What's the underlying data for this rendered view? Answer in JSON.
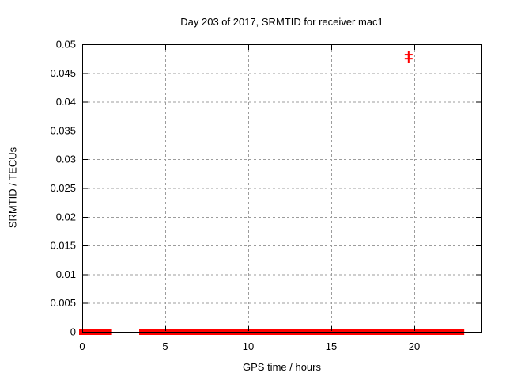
{
  "chart_data": {
    "type": "scatter",
    "title": "Day 203 of 2017, SRMTID for receiver mac1",
    "xlabel": "GPS time / hours",
    "ylabel": "SRMTID / TECUs",
    "xlim": [
      0,
      24.05
    ],
    "ylim": [
      0,
      0.05
    ],
    "xticks": [
      0,
      5,
      10,
      15,
      20
    ],
    "xtick_labels": [
      "0",
      "5",
      "10",
      "15",
      "20"
    ],
    "yticks": [
      0,
      0.005,
      0.01,
      0.015,
      0.02,
      0.025,
      0.03,
      0.035,
      0.04,
      0.045,
      0.05
    ],
    "ytick_labels": [
      "0",
      "0.005",
      "0.01",
      "0.015",
      "0.02",
      "0.025",
      "0.03",
      "0.035",
      "0.04",
      "0.045",
      "0.05"
    ],
    "grid": true,
    "legend_position": "none",
    "series": [
      {
        "name": "SRMTID",
        "marker": "plus",
        "color": "#ff0000",
        "baseline_segments": [
          {
            "x_start": 0.0,
            "x_end": 1.6,
            "y": 0.0
          },
          {
            "x_start": 3.62,
            "x_end": 22.82,
            "y": 0.0
          }
        ],
        "points": [
          {
            "x": 19.66,
            "y": 0.0482
          },
          {
            "x": 19.66,
            "y": 0.0475
          }
        ]
      }
    ],
    "colors": {
      "grid": "#9c9c9c",
      "border": "#000000",
      "text": "#000000",
      "background": "#ffffff"
    }
  }
}
